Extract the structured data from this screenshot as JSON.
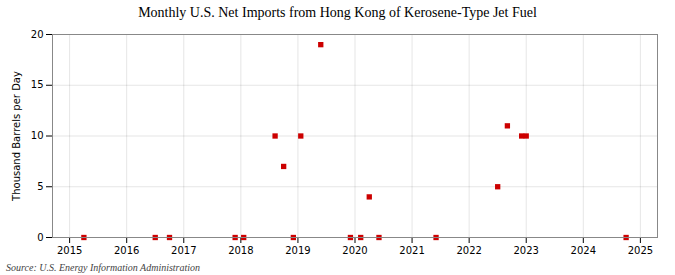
{
  "chart_data": {
    "type": "scatter",
    "title": "Monthly U.S. Net Imports from Hong Kong of Kerosene-Type Jet Fuel",
    "ylabel": "Thousand Barrels per Day",
    "source": "Source: U.S. Energy Information Administration",
    "x": [
      2015.25,
      2016.5,
      2016.75,
      2017.9,
      2018.05,
      2018.6,
      2018.75,
      2018.92,
      2019.05,
      2019.4,
      2019.92,
      2020.1,
      2020.25,
      2020.42,
      2021.42,
      2022.5,
      2022.67,
      2022.92,
      2023.0,
      2024.75
    ],
    "values": [
      0,
      0,
      0,
      0,
      0,
      10,
      7,
      0,
      10,
      19,
      0,
      0,
      4,
      0,
      0,
      5,
      11,
      10,
      10,
      0
    ],
    "color": "#cc0000",
    "marker": "square",
    "xlim": [
      2014.7,
      2025.3
    ],
    "xticks": [
      2015,
      2016,
      2017,
      2018,
      2019,
      2020,
      2021,
      2022,
      2023,
      2024,
      2025
    ],
    "ylim": [
      0,
      20
    ],
    "yticks": [
      0,
      5,
      10,
      15,
      20
    ],
    "grid": true
  }
}
